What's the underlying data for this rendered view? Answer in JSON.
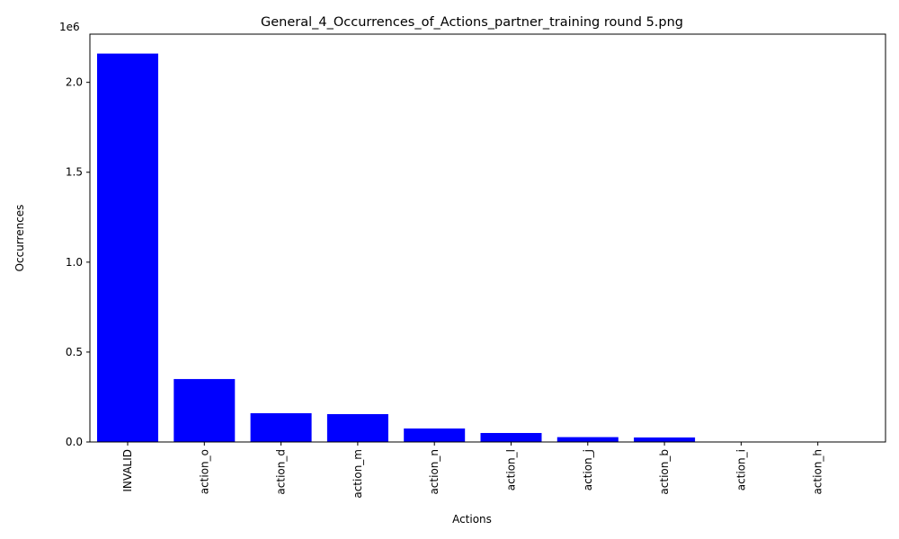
{
  "chart_data": {
    "type": "bar",
    "title": "General_4_Occurrences_of_Actions_partner_training round 5.png",
    "xlabel": "Actions",
    "ylabel": "Occurrences",
    "offset_label": "1e6",
    "categories": [
      "INVALID",
      "action_o",
      "action_d",
      "action_m",
      "action_n",
      "action_l",
      "action_j",
      "action_b",
      "action_i",
      "action_h"
    ],
    "values": [
      2160000,
      350000,
      160000,
      155000,
      75000,
      50000,
      27000,
      25000,
      1500,
      1000
    ],
    "ylim": [
      0,
      2268000
    ],
    "yticks": [
      0,
      500000,
      1000000,
      1500000,
      2000000
    ],
    "ytick_labels": [
      "0.0",
      "0.5",
      "1.0",
      "1.5",
      "2.0"
    ],
    "bar_color": "#0000ff",
    "grid": false,
    "legend": "none"
  }
}
